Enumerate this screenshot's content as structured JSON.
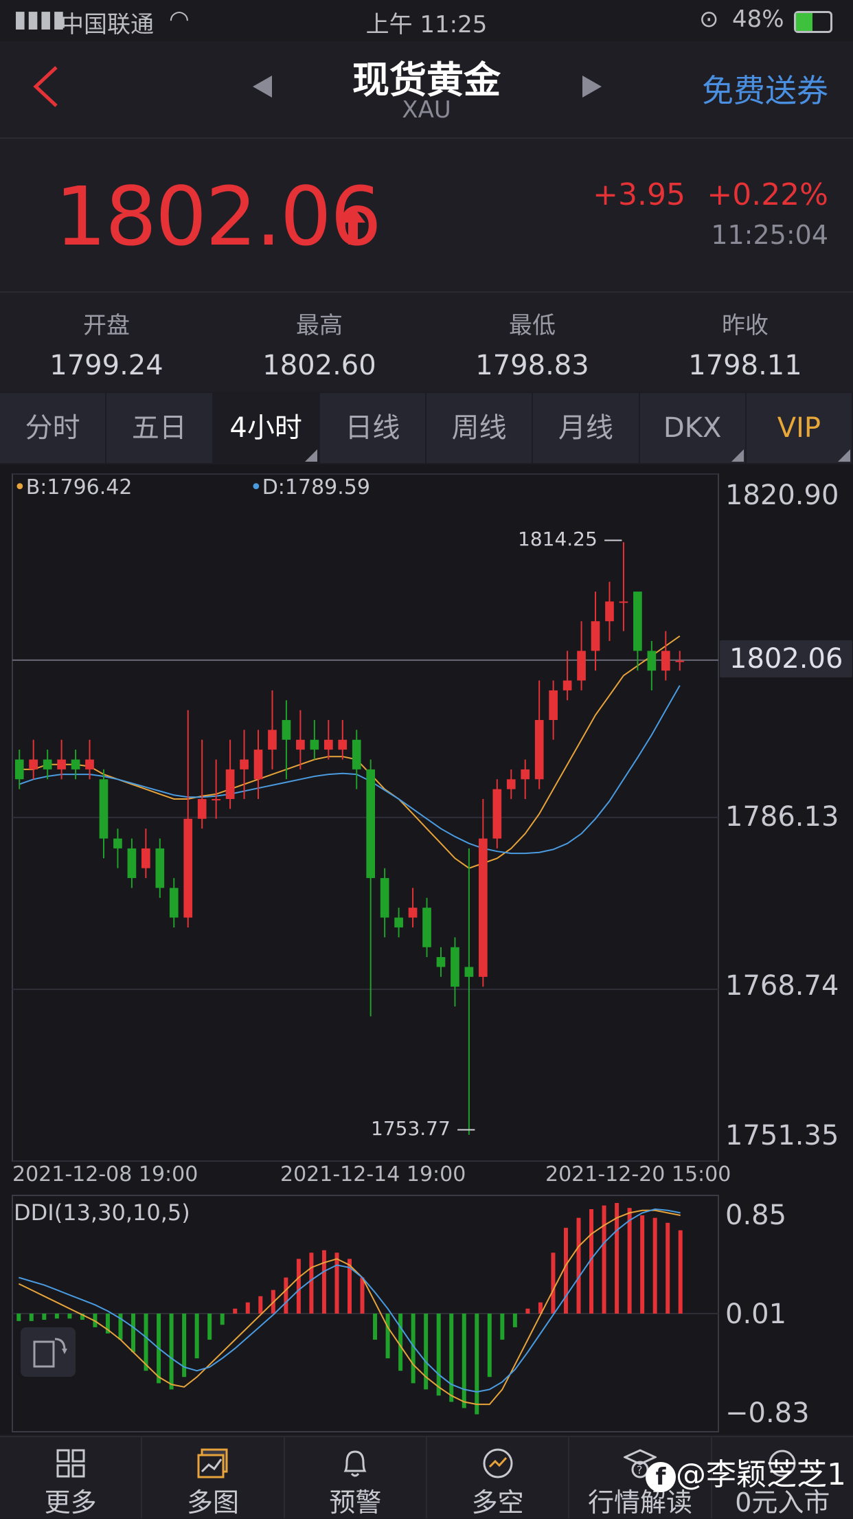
{
  "status_bar": {
    "carrier": "中国联通",
    "time": "上午 11:25",
    "battery": "48%"
  },
  "header": {
    "title": "现货黄金",
    "subtitle": "XAU",
    "free_voucher": "免费送券"
  },
  "quote": {
    "price": "1802.06",
    "change_abs": "+3.95",
    "change_pct": "+0.22%",
    "time": "11:25:04"
  },
  "stats": [
    {
      "label": "开盘",
      "value": "1799.24"
    },
    {
      "label": "最高",
      "value": "1802.60"
    },
    {
      "label": "最低",
      "value": "1798.83"
    },
    {
      "label": "昨收",
      "value": "1798.11"
    }
  ],
  "tabs": [
    "分时",
    "五日",
    "4小时",
    "日线",
    "周线",
    "月线",
    "DKX",
    "VIP"
  ],
  "active_tab": "4小时",
  "colors": {
    "up": "#e53236",
    "down": "#1fa12a",
    "line_b": "#e8a33a",
    "line_d": "#4a9be0"
  },
  "chart_data": [
    {
      "type": "candlestick",
      "legend": {
        "B": "B:1796.42",
        "D": "D:1789.59"
      },
      "y_ticks": [
        "1820.90",
        "1786.13",
        "1768.74",
        "1751.35"
      ],
      "x_ticks": [
        "2021-12-08 19:00",
        "2021-12-14 19:00",
        "2021-12-20 15:00"
      ],
      "current_price_label": "1802.06",
      "max_label": "1814.25",
      "min_label": "1753.77",
      "ylim": [
        1751.35,
        1820.9
      ],
      "candles": [
        [
          1792,
          1790,
          1793,
          1789
        ],
        [
          1791,
          1792,
          1794,
          1790
        ],
        [
          1792,
          1791,
          1793,
          1790
        ],
        [
          1791,
          1792,
          1794,
          1790
        ],
        [
          1792,
          1791,
          1793,
          1790
        ],
        [
          1791,
          1792,
          1794,
          1790
        ],
        [
          1790,
          1784,
          1791,
          1782
        ],
        [
          1784,
          1783,
          1785,
          1781
        ],
        [
          1783,
          1780,
          1784,
          1779
        ],
        [
          1781,
          1783,
          1785,
          1780
        ],
        [
          1783,
          1779,
          1784,
          1778
        ],
        [
          1779,
          1776,
          1780,
          1775
        ],
        [
          1776,
          1786,
          1797,
          1775
        ],
        [
          1786,
          1788,
          1794,
          1785
        ],
        [
          1788,
          1788,
          1792,
          1786
        ],
        [
          1788,
          1791,
          1794,
          1787
        ],
        [
          1791,
          1792,
          1795,
          1788
        ],
        [
          1790,
          1793,
          1795,
          1788
        ],
        [
          1793,
          1795,
          1799,
          1791
        ],
        [
          1796,
          1794,
          1798,
          1790
        ],
        [
          1793,
          1794,
          1797,
          1791
        ],
        [
          1794,
          1793,
          1796,
          1792
        ],
        [
          1793,
          1794,
          1796,
          1792
        ],
        [
          1793,
          1794,
          1796,
          1792
        ],
        [
          1794,
          1791,
          1795,
          1789
        ],
        [
          1791,
          1780,
          1792,
          1766
        ],
        [
          1780,
          1776,
          1781,
          1774
        ],
        [
          1776,
          1775,
          1777,
          1774
        ],
        [
          1776,
          1777,
          1779,
          1775
        ],
        [
          1777,
          1773,
          1778,
          1772
        ],
        [
          1772,
          1771,
          1773,
          1770
        ],
        [
          1773,
          1769,
          1774,
          1767
        ],
        [
          1771,
          1770,
          1783,
          1754
        ],
        [
          1770,
          1784,
          1788,
          1769
        ],
        [
          1784,
          1789,
          1790,
          1783
        ],
        [
          1789,
          1790,
          1791,
          1788
        ],
        [
          1790,
          1791,
          1792,
          1788
        ],
        [
          1790,
          1796,
          1800,
          1789
        ],
        [
          1796,
          1799,
          1800,
          1794
        ],
        [
          1799,
          1800,
          1803,
          1798
        ],
        [
          1800,
          1803,
          1806,
          1799
        ],
        [
          1803,
          1806,
          1809,
          1801
        ],
        [
          1806,
          1808,
          1810,
          1804
        ],
        [
          1808,
          1808,
          1814,
          1805
        ],
        [
          1809,
          1803,
          1809,
          1801
        ],
        [
          1803,
          1801,
          1804,
          1799
        ],
        [
          1801,
          1803,
          1805,
          1800
        ],
        [
          1802,
          1802,
          1803,
          1801
        ]
      ],
      "ma_b": [
        1791,
        1791,
        1791.5,
        1791.5,
        1791.5,
        1791.3,
        1790.5,
        1790,
        1789.5,
        1789,
        1788.5,
        1788,
        1788,
        1788.3,
        1788.5,
        1789,
        1789.5,
        1790,
        1790.5,
        1791,
        1791.5,
        1792,
        1792.3,
        1792.3,
        1792,
        1790.5,
        1789,
        1788,
        1786.5,
        1785,
        1783.5,
        1782,
        1781,
        1781.5,
        1782,
        1783,
        1784.5,
        1786.5,
        1789,
        1791.5,
        1794,
        1796.5,
        1798.5,
        1800.5,
        1801.5,
        1802.5,
        1803.5,
        1804.5
      ],
      "ma_d": [
        1789.5,
        1790,
        1790.3,
        1790.5,
        1790.5,
        1790.5,
        1790.3,
        1790,
        1789.6,
        1789.2,
        1788.8,
        1788.4,
        1788.2,
        1788.2,
        1788.3,
        1788.5,
        1788.8,
        1789.1,
        1789.4,
        1789.7,
        1790,
        1790.3,
        1790.5,
        1790.6,
        1790.5,
        1789.8,
        1788.9,
        1788,
        1787,
        1786,
        1785,
        1784.2,
        1783.5,
        1783,
        1782.7,
        1782.5,
        1782.5,
        1782.6,
        1782.9,
        1783.5,
        1784.5,
        1786,
        1787.8,
        1790,
        1792.2,
        1794.5,
        1797,
        1799.5
      ]
    },
    {
      "type": "bar",
      "title": "DDI(13,30,10,5)",
      "y_ticks": [
        "0.85",
        "0.01",
        "−0.83"
      ],
      "ylim": [
        -0.83,
        0.85
      ],
      "bars": [
        -0.05,
        -0.05,
        -0.04,
        -0.03,
        -0.03,
        -0.04,
        -0.1,
        -0.15,
        -0.2,
        -0.3,
        -0.45,
        -0.55,
        -0.6,
        -0.5,
        -0.35,
        -0.2,
        -0.08,
        0.05,
        0.1,
        0.15,
        0.2,
        0.3,
        0.45,
        0.5,
        0.52,
        0.5,
        0.45,
        0.3,
        -0.2,
        -0.35,
        -0.45,
        -0.55,
        -0.6,
        -0.65,
        -0.7,
        -0.75,
        -0.8,
        -0.5,
        -0.2,
        -0.1,
        0.05,
        0.1,
        0.5,
        0.7,
        0.78,
        0.85,
        0.88,
        0.9,
        0.86,
        0.8,
        0.78,
        0.74,
        0.68
      ],
      "line_b": [
        0.25,
        0.2,
        0.15,
        0.1,
        0.05,
        0.0,
        -0.05,
        -0.12,
        -0.2,
        -0.3,
        -0.4,
        -0.5,
        -0.56,
        -0.58,
        -0.5,
        -0.4,
        -0.3,
        -0.2,
        -0.1,
        0.0,
        0.1,
        0.2,
        0.3,
        0.38,
        0.42,
        0.45,
        0.4,
        0.3,
        0.1,
        -0.1,
        -0.25,
        -0.4,
        -0.5,
        -0.58,
        -0.65,
        -0.7,
        -0.72,
        -0.72,
        -0.6,
        -0.4,
        -0.2,
        0.0,
        0.2,
        0.4,
        0.55,
        0.65,
        0.72,
        0.78,
        0.82,
        0.84,
        0.84,
        0.82,
        0.8
      ],
      "line_d": [
        0.3,
        0.27,
        0.24,
        0.2,
        0.16,
        0.12,
        0.08,
        0.03,
        -0.03,
        -0.1,
        -0.18,
        -0.27,
        -0.35,
        -0.42,
        -0.45,
        -0.42,
        -0.35,
        -0.27,
        -0.18,
        -0.09,
        0.0,
        0.1,
        0.2,
        0.28,
        0.35,
        0.4,
        0.38,
        0.3,
        0.18,
        0.05,
        -0.1,
        -0.25,
        -0.38,
        -0.48,
        -0.56,
        -0.6,
        -0.62,
        -0.6,
        -0.54,
        -0.44,
        -0.3,
        -0.15,
        0.0,
        0.15,
        0.3,
        0.45,
        0.58,
        0.68,
        0.76,
        0.82,
        0.85,
        0.84,
        0.82
      ]
    }
  ],
  "bottom_nav": [
    {
      "label": "更多",
      "icon": "grid-icon"
    },
    {
      "label": "多图",
      "icon": "multi-chart-icon"
    },
    {
      "label": "预警",
      "icon": "bell-icon"
    },
    {
      "label": "多空",
      "icon": "trend-icon"
    },
    {
      "label": "行情解读",
      "icon": "help-cap-icon"
    },
    {
      "label": "0元入市",
      "icon": "gift-icon"
    }
  ],
  "watermark": "@李颖芝芝1"
}
